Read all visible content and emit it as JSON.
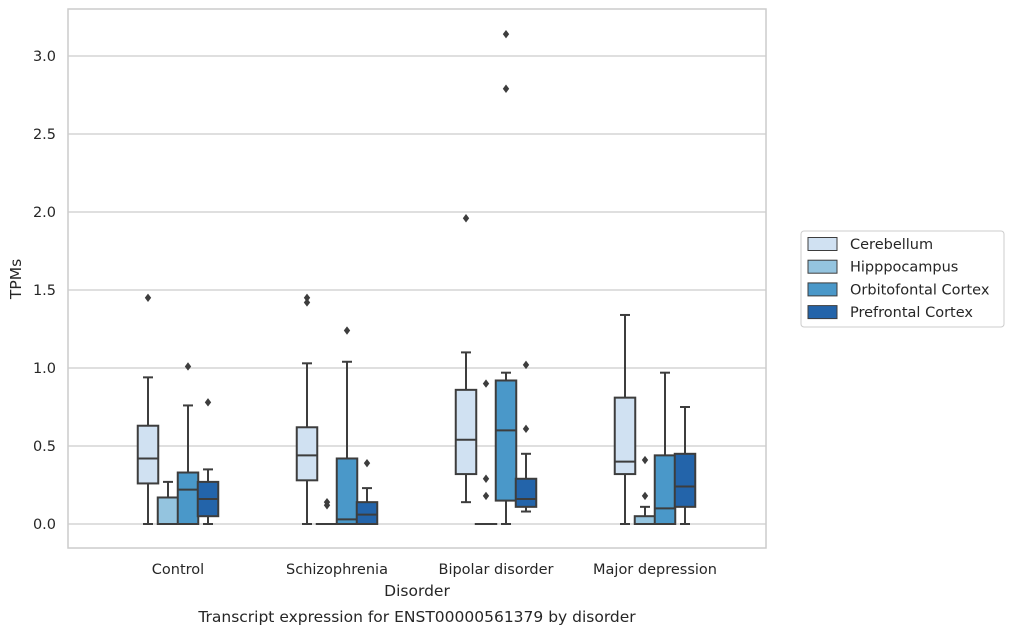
{
  "chart_data": {
    "type": "boxplot",
    "title": "",
    "caption": "Transcript expression for ENST00000561379 by disorder",
    "xlabel": "Disorder",
    "ylabel": "TPMs",
    "ylim": [
      -0.15,
      3.3
    ],
    "yticks": [
      "0.0",
      "0.5",
      "1.0",
      "1.5",
      "2.0",
      "2.5",
      "3.0"
    ],
    "grid": "horizontal",
    "legend_position": "right",
    "categories": [
      "Control",
      "Schizophrenia",
      "Bipolar disorder",
      "Major depression"
    ],
    "series": [
      {
        "name": "Cerebellum",
        "color": "#d0e1f2",
        "boxes": [
          {
            "whislo": 0.0,
            "q1": 0.26,
            "med": 0.42,
            "q3": 0.63,
            "whishi": 0.94,
            "fliers": [
              1.45
            ]
          },
          {
            "whislo": 0.0,
            "q1": 0.28,
            "med": 0.44,
            "q3": 0.62,
            "whishi": 1.03,
            "fliers": [
              1.42,
              1.45
            ]
          },
          {
            "whislo": 0.14,
            "q1": 0.32,
            "med": 0.54,
            "q3": 0.86,
            "whishi": 1.1,
            "fliers": [
              1.96
            ]
          },
          {
            "whislo": 0.0,
            "q1": 0.32,
            "med": 0.4,
            "q3": 0.81,
            "whishi": 1.34,
            "fliers": []
          }
        ]
      },
      {
        "name": "Hipppocampus",
        "color": "#94c4df",
        "boxes": [
          {
            "whislo": 0.0,
            "q1": 0.0,
            "med": 0.0,
            "q3": 0.17,
            "whishi": 0.27,
            "fliers": []
          },
          {
            "whislo": 0.0,
            "q1": 0.0,
            "med": 0.0,
            "q3": 0.0,
            "whishi": 0.0,
            "fliers": [
              0.12,
              0.14
            ]
          },
          {
            "whislo": 0.0,
            "q1": 0.0,
            "med": 0.0,
            "q3": 0.0,
            "whishi": 0.0,
            "fliers": [
              0.18,
              0.29,
              0.9
            ]
          },
          {
            "whislo": 0.0,
            "q1": 0.0,
            "med": 0.0,
            "q3": 0.05,
            "whishi": 0.11,
            "fliers": [
              0.18,
              0.41
            ]
          }
        ]
      },
      {
        "name": "Orbitofontal Cortex",
        "color": "#4a98c9",
        "boxes": [
          {
            "whislo": 0.0,
            "q1": 0.0,
            "med": 0.22,
            "q3": 0.33,
            "whishi": 0.76,
            "fliers": [
              1.01
            ]
          },
          {
            "whislo": 0.0,
            "q1": 0.0,
            "med": 0.03,
            "q3": 0.42,
            "whishi": 1.04,
            "fliers": [
              1.24
            ]
          },
          {
            "whislo": 0.0,
            "q1": 0.15,
            "med": 0.6,
            "q3": 0.92,
            "whishi": 0.97,
            "fliers": [
              2.79,
              3.14
            ]
          },
          {
            "whislo": 0.0,
            "q1": 0.0,
            "med": 0.1,
            "q3": 0.44,
            "whishi": 0.97,
            "fliers": []
          }
        ]
      },
      {
        "name": "Prefrontal Cortex",
        "color": "#2364aa",
        "boxes": [
          {
            "whislo": 0.0,
            "q1": 0.05,
            "med": 0.16,
            "q3": 0.27,
            "whishi": 0.35,
            "fliers": [
              0.78
            ]
          },
          {
            "whislo": 0.0,
            "q1": 0.0,
            "med": 0.06,
            "q3": 0.14,
            "whishi": 0.23,
            "fliers": [
              0.39
            ]
          },
          {
            "whislo": 0.08,
            "q1": 0.11,
            "med": 0.16,
            "q3": 0.29,
            "whishi": 0.45,
            "fliers": [
              0.61,
              1.02
            ]
          },
          {
            "whislo": 0.0,
            "q1": 0.11,
            "med": 0.24,
            "q3": 0.45,
            "whishi": 0.75,
            "fliers": []
          }
        ]
      }
    ]
  }
}
